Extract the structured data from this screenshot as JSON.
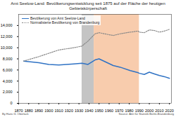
{
  "chart_data": {
    "type": "line",
    "title": "Amt Seelow-Land: Bevölkerungsentwicklung seit 1875 auf der Fläche der heutigen Gebietskörperschaft",
    "x": [
      1875,
      1890,
      1900,
      1910,
      1925,
      1933,
      1939,
      1946,
      1950,
      1964,
      1971,
      1981,
      1985,
      1989,
      1990,
      1995,
      2000,
      2005,
      2010,
      2015,
      2020
    ],
    "series": [
      {
        "name": "Bevölkerung von Amt Seelow-Land",
        "color": "#2f72c4",
        "line_style": "solid",
        "values": [
          7600,
          7300,
          7000,
          6900,
          7100,
          7200,
          7000,
          7800,
          8000,
          6800,
          6500,
          5900,
          5700,
          5500,
          5400,
          5200,
          5600,
          5300,
          5000,
          4800,
          4500
        ]
      },
      {
        "name": "Normalisierte Bevölkerung von Brandenburg",
        "color": "#888888",
        "line_style": "dotted",
        "values": [
          7600,
          8400,
          9000,
          9600,
          10000,
          10300,
          11200,
          12500,
          12700,
          12200,
          12500,
          12800,
          12900,
          13000,
          12800,
          12700,
          13200,
          13100,
          12800,
          13000,
          13300
        ]
      }
    ],
    "shaded_ranges": [
      {
        "from": 1933,
        "to": 1945,
        "color": "#c4c4c4"
      },
      {
        "from": 1945,
        "to": 1990,
        "color": "#f8ccad"
      }
    ],
    "xlim": [
      1870,
      2022
    ],
    "xticks": [
      1870,
      1880,
      1890,
      1900,
      1910,
      1920,
      1930,
      1940,
      1950,
      1960,
      1970,
      1980,
      1990,
      2000,
      2010,
      2020
    ],
    "ylim": [
      0,
      16000
    ],
    "yticks": [
      0,
      {
        "value": 2000,
        "label": "2,000"
      },
      {
        "value": 4000,
        "label": "4,000"
      },
      {
        "value": 6000,
        "label": "6,000"
      },
      {
        "value": 8000,
        "label": "8,000"
      },
      {
        "value": 10000,
        "label": "10,000"
      },
      {
        "value": 12000,
        "label": "12,000"
      },
      {
        "value": 14000,
        "label": "14,000"
      }
    ],
    "grid": false,
    "legend": "top-left",
    "annotations": [
      "By Hans G. Oberlack",
      "Source: Amt für Statistik Berlin-Brandenburg"
    ]
  }
}
